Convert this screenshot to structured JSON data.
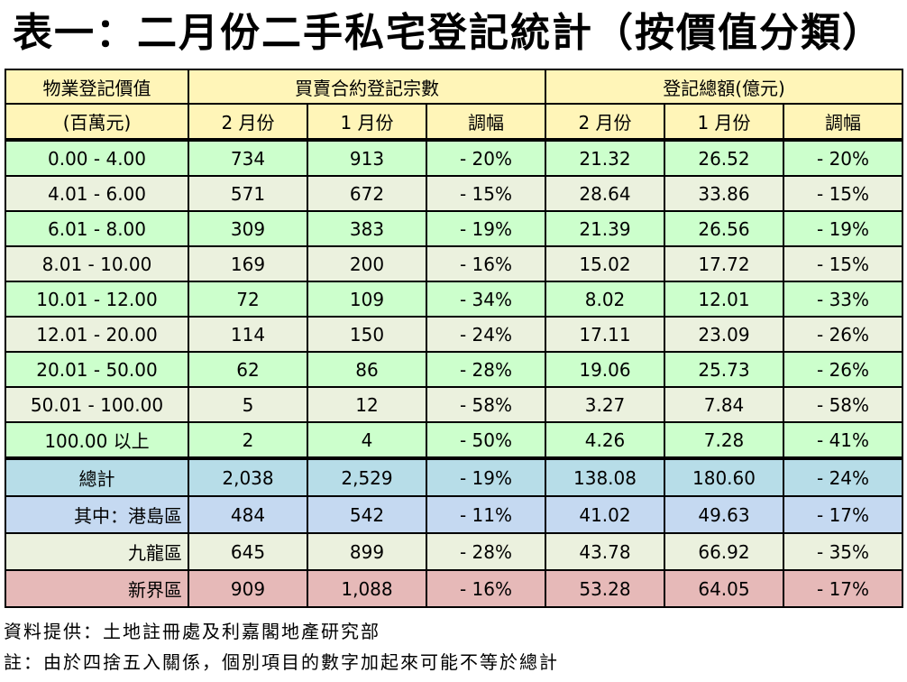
{
  "title": "表一：二月份二手私宅登記統計（按價值分類）",
  "header": {
    "value_label": "物業登記價值",
    "value_unit": "(百萬元)",
    "count_group": "買賣合約登記宗數",
    "amount_group": "登記總額(億元)",
    "feb": "2 月份",
    "jan": "1 月份",
    "change": "調幅"
  },
  "rows": [
    {
      "band": "0.00 - 4.00",
      "c_feb": "734",
      "c_jan": "913",
      "c_chg": "- 20%",
      "a_feb": "21.32",
      "a_jan": "26.52",
      "a_chg": "- 20%"
    },
    {
      "band": "4.01 - 6.00",
      "c_feb": "571",
      "c_jan": "672",
      "c_chg": "- 15%",
      "a_feb": "28.64",
      "a_jan": "33.86",
      "a_chg": "- 15%"
    },
    {
      "band": "6.01 - 8.00",
      "c_feb": "309",
      "c_jan": "383",
      "c_chg": "- 19%",
      "a_feb": "21.39",
      "a_jan": "26.56",
      "a_chg": "- 19%"
    },
    {
      "band": "8.01 - 10.00",
      "c_feb": "169",
      "c_jan": "200",
      "c_chg": "- 16%",
      "a_feb": "15.02",
      "a_jan": "17.72",
      "a_chg": "- 15%"
    },
    {
      "band": "10.01 - 12.00",
      "c_feb": "72",
      "c_jan": "109",
      "c_chg": "- 34%",
      "a_feb": "8.02",
      "a_jan": "12.01",
      "a_chg": "- 33%"
    },
    {
      "band": "12.01 - 20.00",
      "c_feb": "114",
      "c_jan": "150",
      "c_chg": "- 24%",
      "a_feb": "17.11",
      "a_jan": "23.09",
      "a_chg": "- 26%"
    },
    {
      "band": "20.01 - 50.00",
      "c_feb": "62",
      "c_jan": "86",
      "c_chg": "- 28%",
      "a_feb": "19.06",
      "a_jan": "25.73",
      "a_chg": "- 26%"
    },
    {
      "band": "50.01 - 100.00",
      "c_feb": "5",
      "c_jan": "12",
      "c_chg": "- 58%",
      "a_feb": "3.27",
      "a_jan": "7.84",
      "a_chg": "- 58%"
    },
    {
      "band": "100.00  以上",
      "c_feb": "2",
      "c_jan": "4",
      "c_chg": "- 50%",
      "a_feb": "4.26",
      "a_jan": "7.28",
      "a_chg": "- 41%"
    }
  ],
  "total": {
    "label": "總計",
    "c_feb": "2,038",
    "c_jan": "2,529",
    "c_chg": "- 19%",
    "a_feb": "138.08",
    "a_jan": "180.60",
    "a_chg": "- 24%"
  },
  "regions": [
    {
      "label": "其中：港島區",
      "c_feb": "484",
      "c_jan": "542",
      "c_chg": "- 11%",
      "a_feb": "41.02",
      "a_jan": "49.63",
      "a_chg": "- 17%"
    },
    {
      "label": "九龍區",
      "c_feb": "645",
      "c_jan": "899",
      "c_chg": "- 28%",
      "a_feb": "43.78",
      "a_jan": "66.92",
      "a_chg": "- 35%"
    },
    {
      "label": "新界區",
      "c_feb": "909",
      "c_jan": "1,088",
      "c_chg": "- 16%",
      "a_feb": "53.28",
      "a_jan": "64.05",
      "a_chg": "- 17%"
    }
  ],
  "notes": {
    "source": "資料提供：土地註冊處及利嘉閣地產研究部",
    "remark": "註：由於四捨五入關係，個別項目的數字加起來可能不等於總計"
  }
}
